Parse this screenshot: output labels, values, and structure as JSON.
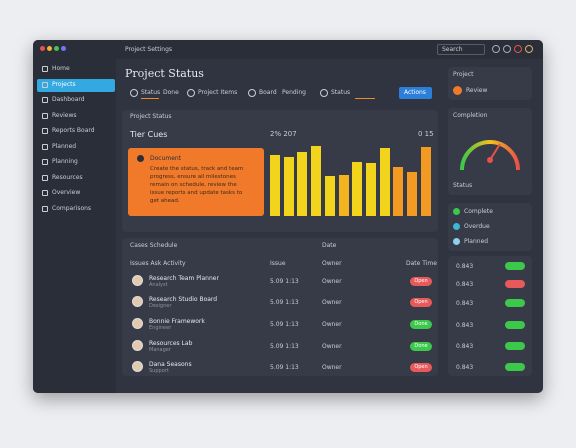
{
  "window": {
    "title": "Project Settings",
    "search": "Search"
  },
  "sidebar": [
    "Home",
    "Projects",
    "Dashboard",
    "Reviews",
    "Reports Board",
    "Planned",
    "Planning",
    "Resources",
    "Overview",
    "Comparisons"
  ],
  "main": {
    "title": "Project Status",
    "filters": [
      "Status",
      "Done",
      "Project Items",
      "Board",
      "Pending",
      "Status"
    ],
    "button": "Actions"
  },
  "chart_card": {
    "header": "Project Status",
    "label": "Tier Cues",
    "total": "2% 207",
    "count": "0 15",
    "note_title": "Document",
    "note_text": "Create the status, track and team progress, ensure all milestones remain on schedule, review the issue reports and update tasks to get ahead.",
    "bars": {
      "values": [
        61,
        59,
        64,
        70,
        40,
        41,
        54,
        53,
        68,
        49,
        44,
        69
      ],
      "colors": [
        "#f2d41c",
        "#f2d41c",
        "#f2d41c",
        "#f2d41c",
        "#f2d41c",
        "#f4b41e",
        "#f2d41c",
        "#f2d41c",
        "#f2d41c",
        "#f39a22",
        "#f39a22",
        "#f39a22"
      ]
    }
  },
  "cases": {
    "title": "Cases Schedule",
    "date": "Date",
    "columns": [
      "Issues Ask Activity",
      "Issue",
      "Owner",
      "Date Time"
    ],
    "rows": [
      {
        "name": "Research Team Planner",
        "sub": "Analyst",
        "time": "5.09 1:13",
        "owner": "Owner",
        "status": "Open",
        "color": "#e85a5a"
      },
      {
        "name": "Research Studio Board",
        "sub": "Designer",
        "time": "5.09 1:13",
        "owner": "Owner",
        "status": "Open",
        "color": "#e85a5a"
      },
      {
        "name": "Bonnie Framework",
        "sub": "Engineer",
        "time": "5.09 1:13",
        "owner": "Owner",
        "status": "Done",
        "color": "#3cc84a"
      },
      {
        "name": "Resources Lab",
        "sub": "Manager",
        "time": "5.09 1:13",
        "owner": "Owner",
        "status": "Done",
        "color": "#3cc84a"
      },
      {
        "name": "Dana Seasons",
        "sub": "Support",
        "time": "5.09 1:13",
        "owner": "Owner",
        "status": "Open",
        "color": "#e85a5a"
      }
    ]
  },
  "side": {
    "project": "Project",
    "person": "Review",
    "gauge_title": "Completion",
    "gauge_label": "Status",
    "legend": [
      {
        "name": "Complete",
        "color": "#3cc84a"
      },
      {
        "name": "Overdue",
        "color": "#3fb6d8"
      },
      {
        "name": "Planned",
        "color": "#8fd0f0"
      }
    ],
    "list": [
      {
        "value": "0.843",
        "color": "#3cc84a"
      },
      {
        "value": "0.843",
        "color": "#e85a5a"
      },
      {
        "value": "0.843",
        "color": "#3cc84a"
      },
      {
        "value": "0.843",
        "color": "#3cc84a"
      },
      {
        "value": "0.843",
        "color": "#3cc84a"
      },
      {
        "value": "0.843",
        "color": "#3cc84a"
      }
    ]
  }
}
